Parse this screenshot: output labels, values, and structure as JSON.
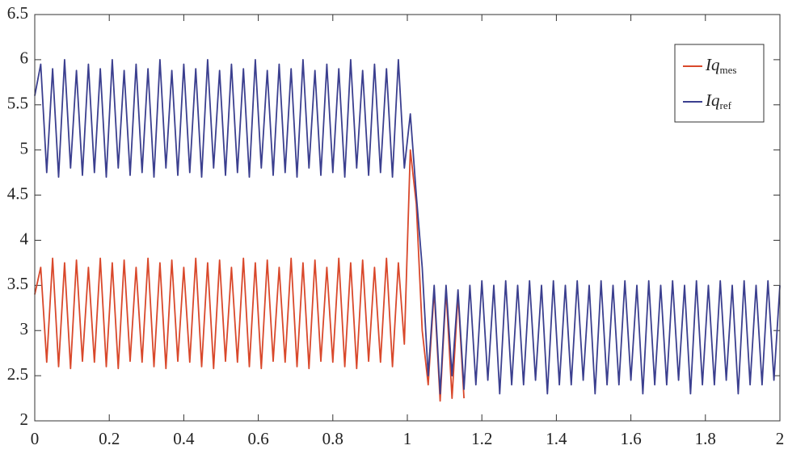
{
  "chart_data": {
    "type": "line",
    "x": [
      0,
      0.016,
      0.032,
      0.048,
      0.064,
      0.08,
      0.096,
      0.112,
      0.128,
      0.144,
      0.16,
      0.176,
      0.192,
      0.208,
      0.224,
      0.24,
      0.256,
      0.272,
      0.288,
      0.304,
      0.32,
      0.336,
      0.352,
      0.368,
      0.384,
      0.4,
      0.416,
      0.432,
      0.448,
      0.464,
      0.48,
      0.496,
      0.512,
      0.528,
      0.544,
      0.56,
      0.576,
      0.592,
      0.608,
      0.624,
      0.64,
      0.656,
      0.672,
      0.688,
      0.704,
      0.72,
      0.736,
      0.752,
      0.768,
      0.784,
      0.8,
      0.816,
      0.832,
      0.848,
      0.864,
      0.88,
      0.896,
      0.912,
      0.928,
      0.944,
      0.96,
      0.976,
      0.992,
      1.008,
      1.024,
      1.04,
      1.056,
      1.072,
      1.088,
      1.104,
      1.12,
      1.136,
      1.152,
      1.168,
      1.184,
      1.2,
      1.216,
      1.232,
      1.248,
      1.264,
      1.28,
      1.296,
      1.312,
      1.328,
      1.344,
      1.36,
      1.376,
      1.392,
      1.408,
      1.424,
      1.44,
      1.456,
      1.472,
      1.488,
      1.504,
      1.52,
      1.536,
      1.552,
      1.568,
      1.584,
      1.6,
      1.616,
      1.632,
      1.648,
      1.664,
      1.68,
      1.696,
      1.712,
      1.728,
      1.744,
      1.76,
      1.776,
      1.792,
      1.808,
      1.824,
      1.84,
      1.856,
      1.872,
      1.888,
      1.904,
      1.92,
      1.936,
      1.952,
      1.968,
      1.984,
      2.0
    ],
    "series": [
      {
        "name": "Iq",
        "subscript": "mes",
        "color": "#d9482b",
        "values": [
          3.4,
          3.7,
          2.65,
          3.8,
          2.6,
          3.75,
          2.58,
          3.78,
          2.66,
          3.7,
          2.65,
          3.8,
          2.6,
          3.75,
          2.58,
          3.78,
          2.66,
          3.7,
          2.65,
          3.8,
          2.6,
          3.75,
          2.58,
          3.78,
          2.66,
          3.7,
          2.65,
          3.8,
          2.6,
          3.75,
          2.58,
          3.78,
          2.66,
          3.7,
          2.65,
          3.8,
          2.6,
          3.75,
          2.58,
          3.78,
          2.66,
          3.7,
          2.65,
          3.8,
          2.6,
          3.75,
          2.58,
          3.78,
          2.66,
          3.7,
          2.65,
          3.8,
          2.6,
          3.75,
          2.58,
          3.78,
          2.66,
          3.7,
          2.65,
          3.8,
          2.6,
          3.75,
          2.85,
          5.0,
          4.4,
          3.0,
          2.4,
          3.45,
          2.22,
          3.45,
          2.25,
          3.4,
          2.25,
          null,
          null,
          null,
          null,
          null,
          null,
          null,
          null,
          null,
          null,
          null,
          null,
          null,
          null,
          null,
          null,
          null,
          null,
          null,
          null,
          null,
          null,
          null,
          null,
          null,
          null,
          null,
          null,
          null,
          null,
          null,
          null,
          null,
          null,
          null,
          null,
          null,
          null,
          null,
          null,
          null,
          null,
          null,
          null,
          null,
          null,
          null,
          null,
          null,
          null,
          null,
          null,
          null
        ]
      },
      {
        "name": "Iq",
        "subscript": "ref",
        "color": "#3b3f8f",
        "values": [
          5.6,
          5.95,
          4.75,
          5.9,
          4.7,
          6.0,
          4.8,
          5.88,
          4.72,
          5.95,
          4.75,
          5.9,
          4.7,
          6.0,
          4.8,
          5.88,
          4.72,
          5.95,
          4.75,
          5.9,
          4.7,
          6.0,
          4.8,
          5.88,
          4.72,
          5.95,
          4.75,
          5.9,
          4.7,
          6.0,
          4.8,
          5.88,
          4.72,
          5.95,
          4.75,
          5.9,
          4.7,
          6.0,
          4.8,
          5.88,
          4.72,
          5.95,
          4.75,
          5.9,
          4.7,
          6.0,
          4.8,
          5.88,
          4.72,
          5.95,
          4.75,
          5.9,
          4.7,
          6.0,
          4.8,
          5.88,
          4.72,
          5.95,
          4.75,
          5.9,
          4.7,
          6.0,
          4.8,
          5.4,
          4.5,
          3.7,
          2.5,
          3.5,
          2.3,
          3.5,
          2.5,
          3.45,
          2.35,
          3.5,
          2.4,
          3.55,
          2.45,
          3.5,
          2.3,
          3.55,
          2.4,
          3.5,
          2.4,
          3.55,
          2.45,
          3.5,
          2.3,
          3.55,
          2.4,
          3.5,
          2.4,
          3.55,
          2.45,
          3.5,
          2.3,
          3.55,
          2.4,
          3.5,
          2.4,
          3.55,
          2.45,
          3.5,
          2.3,
          3.55,
          2.4,
          3.5,
          2.4,
          3.55,
          2.45,
          3.5,
          2.3,
          3.55,
          2.4,
          3.5,
          2.4,
          3.55,
          2.45,
          3.5,
          2.3,
          3.55,
          2.4,
          3.5,
          2.4,
          3.55,
          2.45,
          3.5
        ]
      }
    ],
    "xlim": [
      0,
      2
    ],
    "ylim": [
      2,
      6.5
    ],
    "xticks": [
      0,
      0.2,
      0.4,
      0.6,
      0.8,
      1,
      1.2,
      1.4,
      1.6,
      1.8,
      2
    ],
    "yticks": [
      2,
      2.5,
      3,
      3.5,
      4,
      4.5,
      5,
      5.5,
      6,
      6.5
    ],
    "legend": "upper-right"
  }
}
